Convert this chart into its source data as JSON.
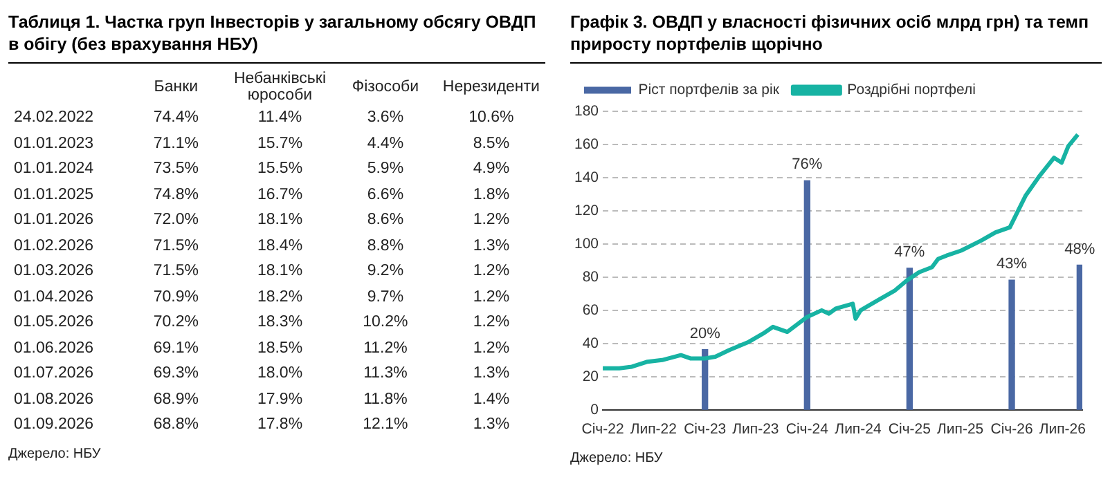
{
  "chart_data": [
    {
      "type": "other",
      "title": "Таблиця 1. Частка груп Інвесторів у загальному обсягу ОВДП в обігу (без врахування НБУ)",
      "categories": [
        "24.02.2022",
        "01.01.2023",
        "01.01.2024",
        "01.01.2025",
        "01.01.2026",
        "01.02.2026",
        "01.03.2026",
        "01.04.2026",
        "01.05.2026",
        "01.06.2026",
        "01.07.2026",
        "01.08.2026",
        "01.09.2026"
      ],
      "series": [
        {
          "name": "Банки",
          "values": [
            74.4,
            71.1,
            73.5,
            74.8,
            72.0,
            71.5,
            71.5,
            70.9,
            70.2,
            69.1,
            69.3,
            68.9,
            68.8
          ],
          "value_labels": [
            "74.4%",
            "71.1%",
            "73.5%",
            "74.8%",
            "72.0%",
            "71.5%",
            "71.5%",
            "70.9%",
            "70.2%",
            "69.1%",
            "69.3%",
            "68.9%",
            "68.8%"
          ]
        },
        {
          "name": "Небанківські юрособи",
          "values": [
            11.4,
            15.7,
            15.5,
            16.7,
            18.1,
            18.4,
            18.1,
            18.2,
            18.3,
            18.5,
            18.0,
            17.9,
            17.8
          ],
          "value_labels": [
            "11.4%",
            "15.7%",
            "15.5%",
            "16.7%",
            "18.1%",
            "18.4%",
            "18.1%",
            "18.2%",
            "18.3%",
            "18.5%",
            "18.0%",
            "17.9%",
            "17.8%"
          ]
        },
        {
          "name": "Фізособи",
          "values": [
            3.6,
            4.4,
            5.9,
            6.6,
            8.6,
            8.8,
            9.2,
            9.7,
            10.2,
            11.2,
            11.3,
            11.8,
            12.1
          ],
          "value_labels": [
            "3.6%",
            "4.4%",
            "5.9%",
            "6.6%",
            "8.6%",
            "8.8%",
            "9.2%",
            "9.7%",
            "10.2%",
            "11.2%",
            "11.3%",
            "11.8%",
            "12.1%"
          ]
        },
        {
          "name": "Нерезиденти",
          "values": [
            10.6,
            8.5,
            4.9,
            1.8,
            1.2,
            1.3,
            1.2,
            1.2,
            1.2,
            1.2,
            1.3,
            1.4,
            1.3
          ],
          "value_labels": [
            "10.6%",
            "8.5%",
            "4.9%",
            "1.8%",
            "1.2%",
            "1.3%",
            "1.2%",
            "1.2%",
            "1.2%",
            "1.2%",
            "1.3%",
            "1.4%",
            "1.3%"
          ]
        }
      ],
      "annotations": [
        "Джерело: НБУ"
      ]
    },
    {
      "type": "bar",
      "title": "Графік 3. ОВДП у власності фізичних осіб млрд грн) та темп приросту портфелів щорічно",
      "xlim": [
        "2022-01-01",
        "2026-09-10"
      ],
      "xticks": [
        {
          "value": "2022-01",
          "label": "Січ-22"
        },
        {
          "value": "2022-07",
          "label": "Лип-22"
        },
        {
          "value": "2023-01",
          "label": "Січ-23"
        },
        {
          "value": "2023-07",
          "label": "Лип-23"
        },
        {
          "value": "2024-01",
          "label": "Січ-24"
        },
        {
          "value": "2024-07",
          "label": "Лип-24"
        },
        {
          "value": "2025-01",
          "label": "Січ-25"
        },
        {
          "value": "2025-07",
          "label": "Лип-25"
        },
        {
          "value": "2026-01",
          "label": "Січ-26"
        },
        {
          "value": "2026-07",
          "label": "Лип-26"
        }
      ],
      "ylim": [
        0,
        180
      ],
      "yticks": [
        0,
        20,
        40,
        60,
        80,
        100,
        120,
        140,
        160,
        180
      ],
      "y2lim": [
        0,
        99
      ],
      "grid": "y",
      "legend": "top left",
      "series": [
        {
          "name": "Ріст портфелів за рік",
          "type": "bar",
          "axis": "y2",
          "color": "#4a68a4",
          "x": [
            "2023-01-01",
            "2024-01-01",
            "2025-01-01",
            "2026-01-01",
            "2026-09-01"
          ],
          "values": [
            20,
            76,
            47,
            43,
            48
          ],
          "value_labels": [
            "20%",
            "76%",
            "47%",
            "43%",
            "48%"
          ]
        },
        {
          "name": "Роздрібні портфелі",
          "type": "line",
          "color": "#17b3a3",
          "x": [
            "2022-01-01",
            "2022-03-01",
            "2022-04-15",
            "2022-06-10",
            "2022-08-01",
            "2022-10-07",
            "2022-11-10",
            "2023-01-01",
            "2023-02-07",
            "2023-03-28",
            "2023-06-07",
            "2023-07-28",
            "2023-09-01",
            "2023-10-22",
            "2024-01-01",
            "2024-02-22",
            "2024-03-19",
            "2024-04-12",
            "2024-06-12",
            "2024-06-22",
            "2024-07-10",
            "2024-09-19",
            "2024-11-10",
            "2024-12-22",
            "2025-02-04",
            "2025-03-22",
            "2025-04-13",
            "2025-05-13",
            "2025-07-04",
            "2025-09-13",
            "2025-11-04",
            "2025-12-25",
            "2026-02-19",
            "2026-04-10",
            "2026-06-01",
            "2026-06-28",
            "2026-07-22",
            "2026-08-25"
          ],
          "values": [
            25,
            25,
            26,
            29,
            30,
            33,
            31,
            31,
            32,
            36,
            41,
            46,
            50,
            47,
            56,
            60,
            58,
            61,
            64,
            55,
            60,
            67,
            72,
            78,
            83,
            86,
            91,
            93,
            96,
            102,
            107,
            110,
            129,
            141,
            152,
            149,
            159,
            166
          ]
        }
      ],
      "annotations": [
        "Джерело: НБУ"
      ]
    }
  ]
}
